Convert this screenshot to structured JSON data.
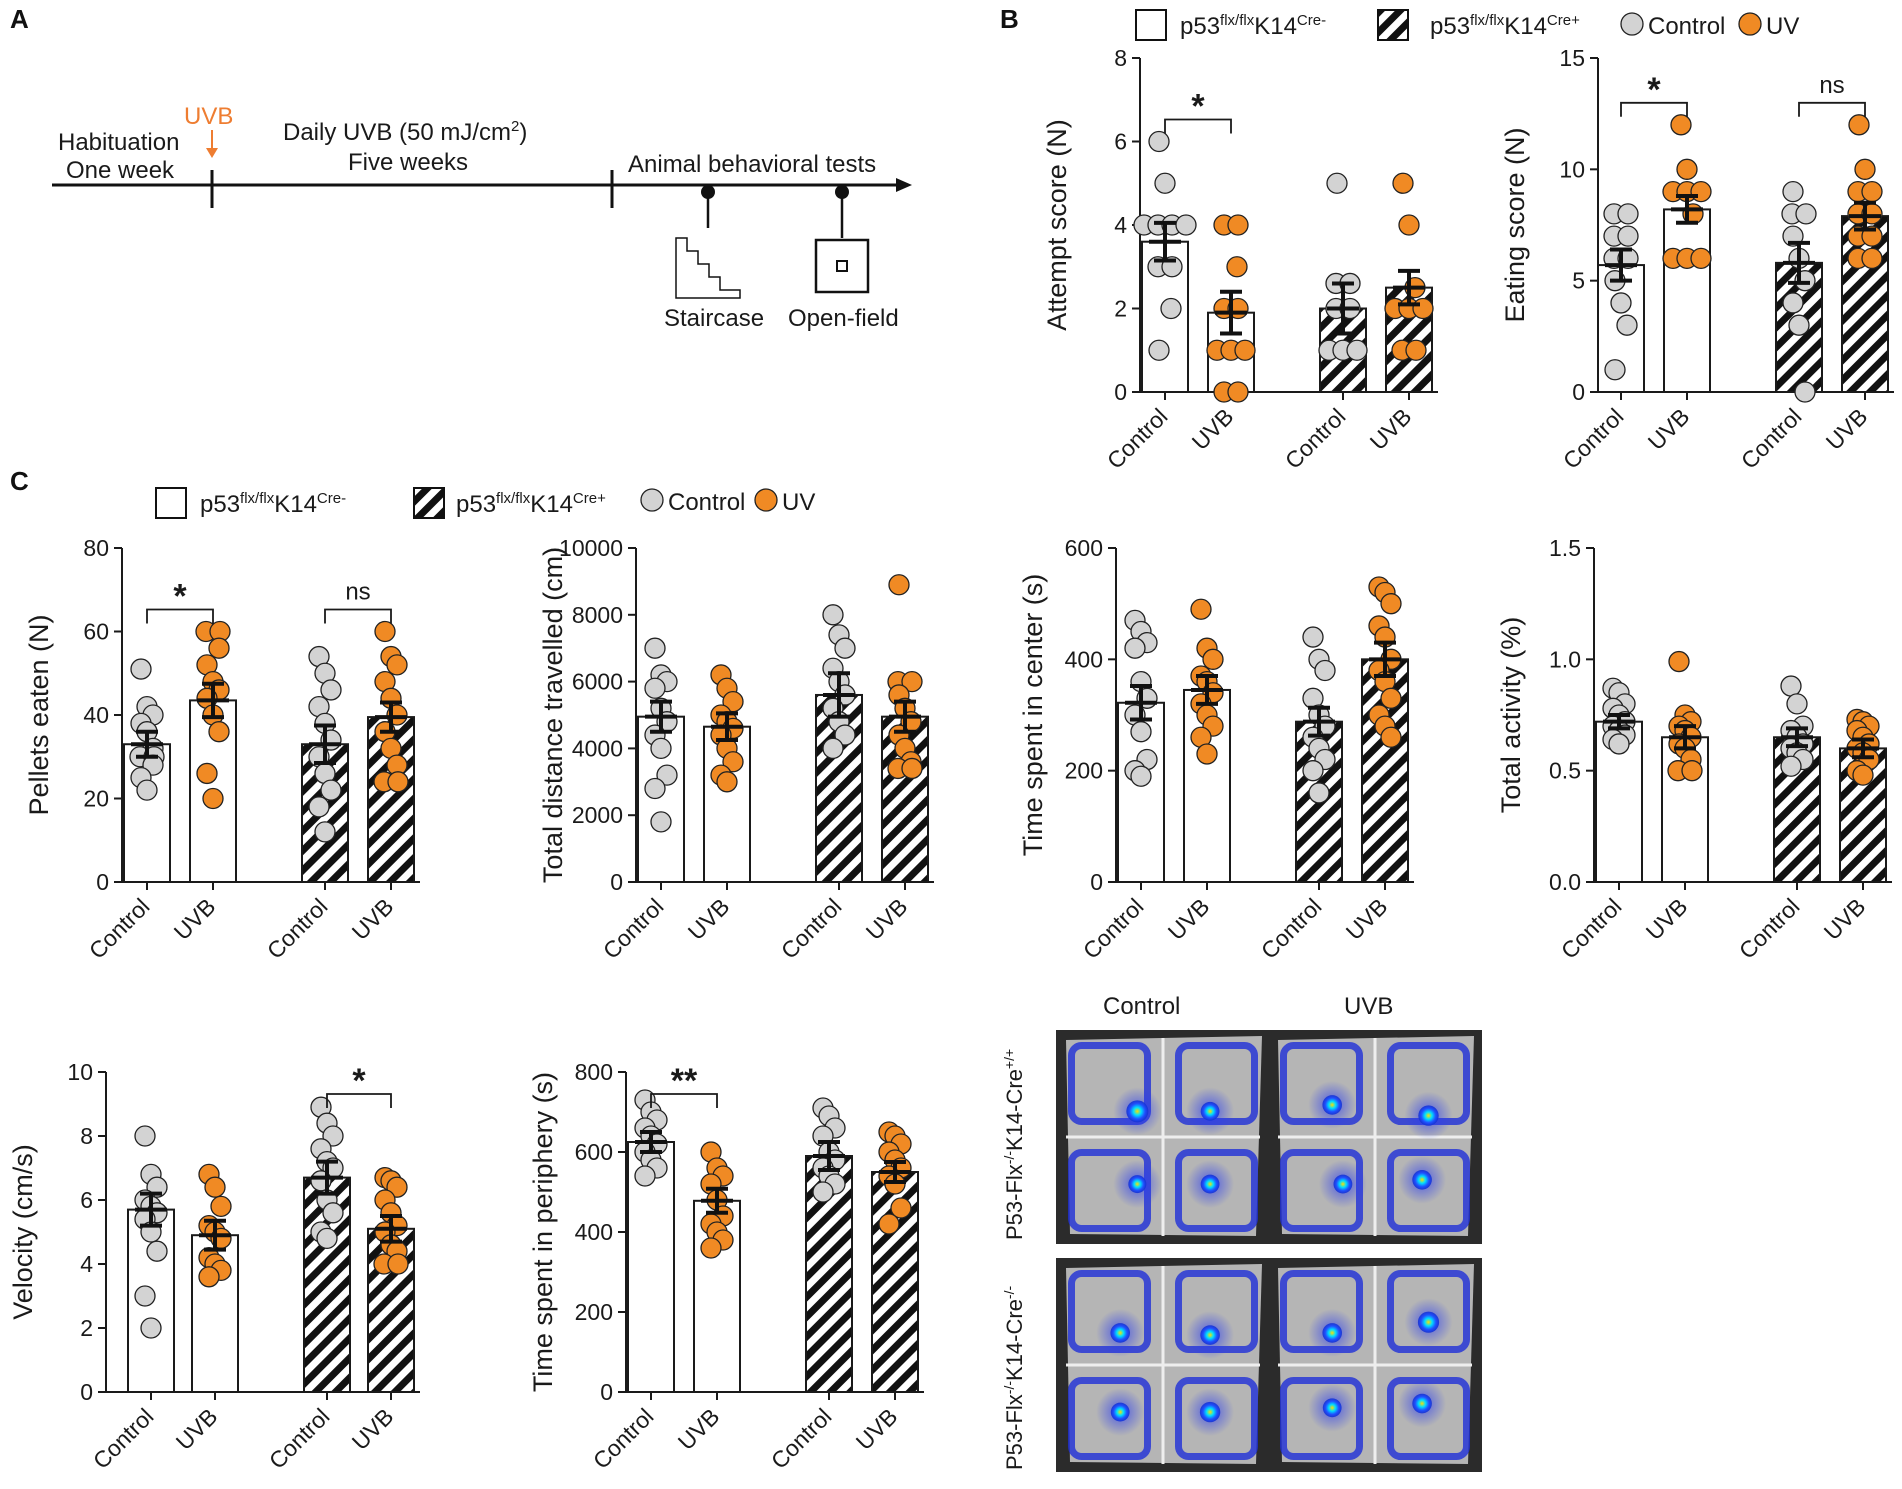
{
  "panels": {
    "a": "A",
    "b": "B",
    "c": "C"
  },
  "timeline": {
    "habituation": "Habituation",
    "one_week": "One week",
    "uvb_marker": "UVB",
    "daily_uvb": "Daily UVB (50 mJ/cm",
    "daily_uvb_sup": "2",
    "daily_uvb_end": ")",
    "five_weeks": "Five weeks",
    "tests": "Animal behavioral tests",
    "staircase": "Staircase",
    "open_field": "Open-field"
  },
  "legend": {
    "g1_main": "p53",
    "g1_sup": "flx/flx",
    "g1_mid": "K14",
    "g1_sup2": "Cre-",
    "g2_main": "p53",
    "g2_sup": "flx/flx",
    "g2_mid": "K14",
    "g2_sup2": "Cre+",
    "control": "Control",
    "uv": "UV"
  },
  "heatmaps": {
    "col_control": "Control",
    "col_uvb": "UVB",
    "row1": "P53-Flx",
    "row1_sup1": "-/-",
    "row1_mid": "K14-Cre",
    "row1_sup2": "+/+",
    "row2": "P53-Flx",
    "row2_sup1": "-/-",
    "row2_mid": "K14-Cre",
    "row2_sup2": "-/-"
  },
  "colors": {
    "control_dot": "#d3d3d3",
    "uv_dot": "#f08a24",
    "uvb_label": "#ee7d31",
    "arena_bg": "#b5b5b5",
    "heat_blue": "#1f2fd8"
  },
  "chart_data": [
    {
      "id": "attempt",
      "type": "bar",
      "ylabel": "Attempt score (N)",
      "ylim": [
        0,
        8
      ],
      "ticks": [
        "0",
        "2",
        "4",
        "6",
        "8"
      ],
      "categories": [
        "Control",
        "UVB",
        "Control",
        "UVB"
      ],
      "groups": [
        "p53flx/flxK14Cre-",
        "p53flx/flxK14Cre-",
        "p53flx/flxK14Cre+",
        "p53flx/flxK14Cre+"
      ],
      "means": [
        3.6,
        1.9,
        2.0,
        2.5
      ],
      "sem": [
        0.45,
        0.5,
        0.6,
        0.4
      ],
      "points": [
        [
          6,
          5,
          4,
          4,
          4,
          4,
          3,
          3,
          2,
          1
        ],
        [
          4,
          4,
          3,
          2,
          2,
          1,
          1,
          1,
          0,
          0
        ],
        [
          5,
          2.6,
          2.6,
          2,
          2,
          1,
          1,
          1
        ],
        [
          5,
          4,
          2.5,
          2,
          2,
          2,
          1,
          1
        ]
      ],
      "brackets": [
        {
          "from": 0,
          "to": 1,
          "label": "*"
        }
      ]
    },
    {
      "id": "eating",
      "type": "bar",
      "ylabel": "Eating score (N)",
      "ylim": [
        0,
        15
      ],
      "ticks": [
        "0",
        "5",
        "10",
        "15"
      ],
      "categories": [
        "Control",
        "UVB",
        "Control",
        "UVB"
      ],
      "groups": [
        "p53flx/flxK14Cre-",
        "p53flx/flxK14Cre-",
        "p53flx/flxK14Cre+",
        "p53flx/flxK14Cre+"
      ],
      "means": [
        5.7,
        8.2,
        5.8,
        7.9
      ],
      "sem": [
        0.7,
        0.6,
        0.9,
        0.6
      ],
      "points": [
        [
          8,
          8,
          7,
          7,
          6,
          6,
          5,
          4,
          3,
          1
        ],
        [
          12,
          10,
          9,
          9,
          9,
          8,
          6,
          6,
          6
        ],
        [
          9,
          8,
          8,
          7,
          6,
          5,
          4,
          3,
          0
        ],
        [
          12,
          10,
          9,
          9,
          8,
          8,
          7,
          7,
          6,
          6
        ]
      ],
      "brackets": [
        {
          "from": 0,
          "to": 1,
          "label": "*"
        },
        {
          "from": 2,
          "to": 3,
          "label": "ns"
        }
      ]
    },
    {
      "id": "pellets",
      "type": "bar",
      "ylabel": "Pellets eaten (N)",
      "ylim": [
        0,
        80
      ],
      "ticks": [
        "0",
        "20",
        "40",
        "60",
        "80"
      ],
      "categories": [
        "Control",
        "UVB",
        "Control",
        "UVB"
      ],
      "groups": [
        "p53flx/flxK14Cre-",
        "p53flx/flxK14Cre-",
        "p53flx/flxK14Cre+",
        "p53flx/flxK14Cre+"
      ],
      "means": [
        33,
        43.5,
        33,
        39.5
      ],
      "sem": [
        3,
        4,
        4.5,
        3.5
      ],
      "points": [
        [
          51,
          42,
          40,
          38,
          36,
          32,
          30,
          30,
          28,
          25,
          22
        ],
        [
          60,
          60,
          56,
          52,
          48,
          46,
          44,
          40,
          36,
          26,
          20
        ],
        [
          54,
          50,
          46,
          42,
          38,
          34,
          30,
          26,
          22,
          18,
          12
        ],
        [
          60,
          54,
          52,
          48,
          44,
          40,
          36,
          32,
          28,
          24,
          24
        ]
      ],
      "brackets": [
        {
          "from": 0,
          "to": 1,
          "label": "*"
        },
        {
          "from": 2,
          "to": 3,
          "label": "ns"
        }
      ]
    },
    {
      "id": "distance",
      "type": "bar",
      "ylabel": "Total distance travelled (cm)",
      "ylim": [
        0,
        10000
      ],
      "ticks": [
        "0",
        "2000",
        "4000",
        "6000",
        "8000",
        "10000"
      ],
      "categories": [
        "Control",
        "UVB",
        "Control",
        "UVB"
      ],
      "groups": [
        "p53flx/flxK14Cre-",
        "p53flx/flxK14Cre-",
        "p53flx/flxK14Cre+",
        "p53flx/flxK14Cre+"
      ],
      "means": [
        4950,
        4650,
        5600,
        4950
      ],
      "sem": [
        450,
        400,
        650,
        450
      ],
      "points": [
        [
          7000,
          6200,
          6000,
          5800,
          5200,
          4800,
          4400,
          4000,
          3200,
          2800,
          1800
        ],
        [
          6200,
          5800,
          5400,
          5000,
          4800,
          4600,
          4400,
          4000,
          3600,
          3200,
          3000
        ],
        [
          8000,
          7400,
          7000,
          6400,
          6000,
          5600,
          5200,
          4800,
          4400,
          4000
        ],
        [
          8900,
          6000,
          6000,
          5600,
          5200,
          4800,
          4400,
          4000,
          3600,
          3400,
          3400
        ]
      ],
      "brackets": []
    },
    {
      "id": "center",
      "type": "bar",
      "ylabel": "Time spent in center (s)",
      "ylim": [
        0,
        600
      ],
      "ticks": [
        "0",
        "200",
        "400",
        "600"
      ],
      "categories": [
        "Control",
        "UVB",
        "Control",
        "UVB"
      ],
      "groups": [
        "p53flx/flxK14Cre-",
        "p53flx/flxK14Cre-",
        "p53flx/flxK14Cre+",
        "p53flx/flxK14Cre+"
      ],
      "means": [
        322,
        345,
        288,
        400
      ],
      "sem": [
        30,
        25,
        25,
        30
      ],
      "points": [
        [
          470,
          450,
          430,
          420,
          360,
          330,
          300,
          270,
          220,
          200,
          190
        ],
        [
          490,
          420,
          400,
          370,
          360,
          340,
          320,
          300,
          280,
          260,
          230
        ],
        [
          440,
          400,
          380,
          330,
          300,
          280,
          260,
          240,
          220,
          200,
          160
        ],
        [
          530,
          520,
          500,
          460,
          440,
          400,
          380,
          360,
          330,
          300,
          280,
          260
        ]
      ],
      "brackets": []
    },
    {
      "id": "activity",
      "type": "bar",
      "ylabel": "Total activity (%)",
      "ylim": [
        0,
        1.5
      ],
      "ticks": [
        "0.0",
        "0.5",
        "1.0",
        "1.5"
      ],
      "categories": [
        "Control",
        "UVB",
        "Control",
        "UVB"
      ],
      "groups": [
        "p53flx/flxK14Cre-",
        "p53flx/flxK14Cre-",
        "p53flx/flxK14Cre+",
        "p53flx/flxK14Cre+"
      ],
      "means": [
        0.72,
        0.65,
        0.65,
        0.6
      ],
      "sem": [
        0.03,
        0.05,
        0.04,
        0.04
      ],
      "points": [
        [
          0.87,
          0.85,
          0.8,
          0.78,
          0.75,
          0.72,
          0.7,
          0.68,
          0.66,
          0.64,
          0.62
        ],
        [
          0.99,
          0.75,
          0.72,
          0.7,
          0.68,
          0.65,
          0.62,
          0.6,
          0.55,
          0.5,
          0.5
        ],
        [
          0.88,
          0.8,
          0.7,
          0.68,
          0.65,
          0.62,
          0.6,
          0.58,
          0.55,
          0.52
        ],
        [
          0.73,
          0.72,
          0.7,
          0.68,
          0.65,
          0.62,
          0.6,
          0.58,
          0.55,
          0.5,
          0.48
        ]
      ],
      "brackets": []
    },
    {
      "id": "velocity",
      "type": "bar",
      "ylabel": "Velocity (cm/s)",
      "ylim": [
        0,
        10
      ],
      "ticks": [
        "0",
        "2",
        "4",
        "6",
        "8",
        "10"
      ],
      "categories": [
        "Control",
        "UVB",
        "Control",
        "UVB"
      ],
      "groups": [
        "p53flx/flxK14Cre-",
        "p53flx/flxK14Cre-",
        "p53flx/flxK14Cre+",
        "p53flx/flxK14Cre+"
      ],
      "means": [
        5.7,
        4.9,
        6.7,
        5.1
      ],
      "sem": [
        0.5,
        0.45,
        0.5,
        0.4
      ],
      "points": [
        [
          8,
          6.8,
          6.4,
          6,
          5.8,
          5.6,
          5.4,
          5,
          4.4,
          3,
          2
        ],
        [
          6.8,
          6.4,
          5.8,
          5.2,
          5,
          4.8,
          4.2,
          4,
          3.8,
          3.6
        ],
        [
          8.9,
          8.4,
          8,
          7.6,
          7.2,
          7,
          6.6,
          6,
          5.6,
          5,
          4.8
        ],
        [
          6.7,
          6.6,
          6.4,
          6,
          5.6,
          5.2,
          5,
          4.6,
          4.4,
          4,
          4
        ]
      ],
      "brackets": [
        {
          "from": 2,
          "to": 3,
          "label": "*"
        }
      ]
    },
    {
      "id": "periphery",
      "type": "bar",
      "ylabel": "Time spent in periphery (s)",
      "ylim": [
        0,
        800
      ],
      "ticks": [
        "0",
        "200",
        "400",
        "600",
        "800"
      ],
      "categories": [
        "Control",
        "UVB",
        "Control",
        "UVB"
      ],
      "groups": [
        "p53flx/flxK14Cre-",
        "p53flx/flxK14Cre-",
        "p53flx/flxK14Cre+",
        "p53flx/flxK14Cre+"
      ],
      "means": [
        625,
        478,
        590,
        550
      ],
      "sem": [
        25,
        30,
        35,
        25
      ],
      "points": [
        [
          730,
          700,
          680,
          660,
          640,
          620,
          600,
          580,
          560,
          540
        ],
        [
          600,
          560,
          540,
          520,
          480,
          440,
          420,
          400,
          380,
          360
        ],
        [
          710,
          690,
          660,
          640,
          600,
          580,
          560,
          540,
          520,
          500
        ],
        [
          650,
          640,
          620,
          600,
          580,
          560,
          540,
          520,
          460,
          420
        ]
      ],
      "brackets": [
        {
          "from": 0,
          "to": 1,
          "label": "**"
        }
      ]
    }
  ]
}
